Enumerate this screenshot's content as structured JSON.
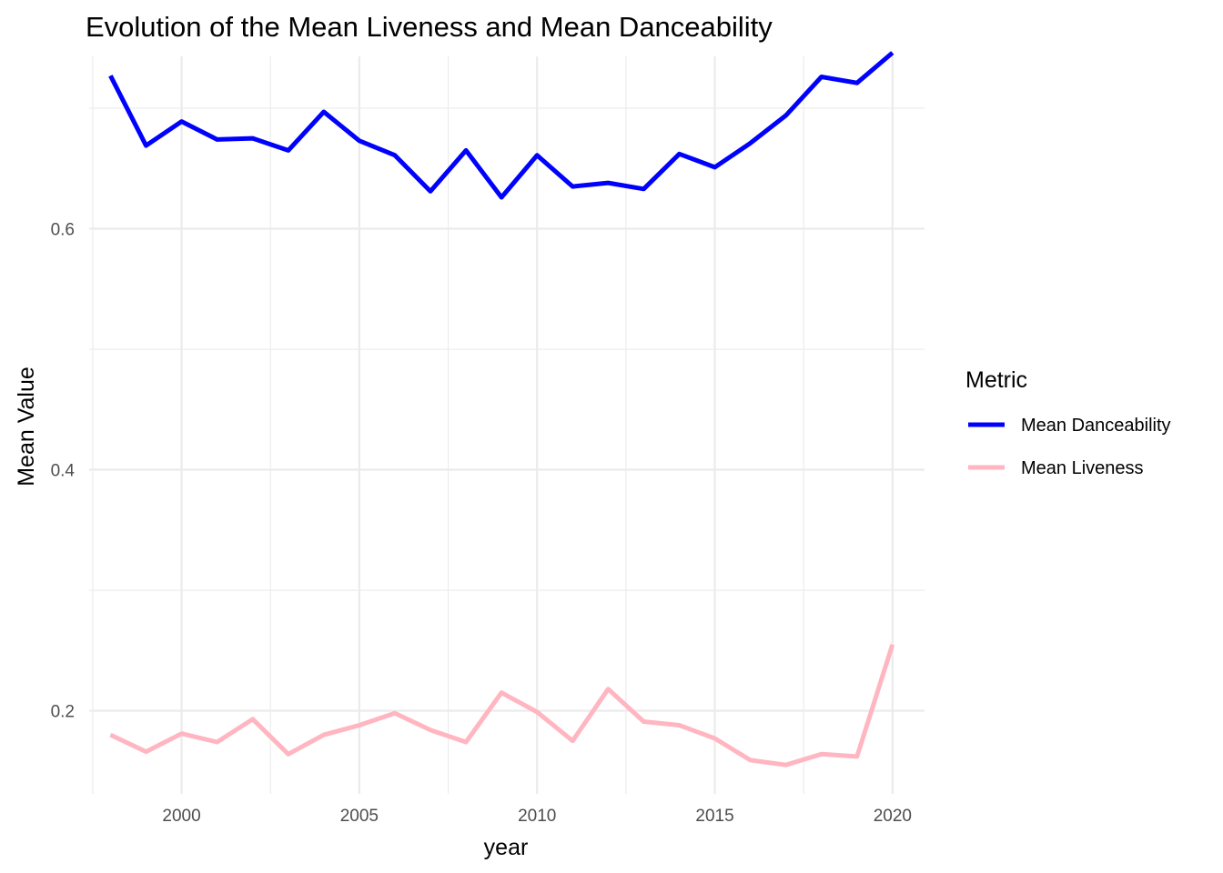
{
  "chart_data": {
    "type": "line",
    "title": "Evolution of the Mean Liveness and Mean Danceability",
    "xlabel": "year",
    "ylabel": "Mean Value",
    "x": [
      1998,
      1999,
      2000,
      2001,
      2002,
      2003,
      2004,
      2005,
      2006,
      2007,
      2008,
      2009,
      2010,
      2011,
      2012,
      2013,
      2014,
      2015,
      2016,
      2017,
      2018,
      2019,
      2020
    ],
    "xlim": [
      1997.4,
      2020.9
    ],
    "ylim": [
      0.131,
      0.743
    ],
    "x_ticks": [
      2000,
      2005,
      2010,
      2015,
      2020
    ],
    "y_ticks": [
      0.2,
      0.4,
      0.6
    ],
    "grid": true,
    "legend": {
      "title": "Metric",
      "position": "right"
    },
    "series": [
      {
        "name": "Mean Danceability",
        "color": "#0000ff",
        "values": [
          0.727,
          0.669,
          0.689,
          0.674,
          0.675,
          0.665,
          0.697,
          0.673,
          0.661,
          0.631,
          0.665,
          0.626,
          0.661,
          0.635,
          0.638,
          0.633,
          0.662,
          0.651,
          0.671,
          0.694,
          0.726,
          0.721,
          0.746
        ]
      },
      {
        "name": "Mean Liveness",
        "color": "#ffb6c1",
        "values": [
          0.18,
          0.166,
          0.181,
          0.174,
          0.193,
          0.164,
          0.18,
          0.188,
          0.198,
          0.184,
          0.174,
          0.215,
          0.199,
          0.175,
          0.218,
          0.191,
          0.188,
          0.177,
          0.159,
          0.155,
          0.164,
          0.162,
          0.255
        ]
      }
    ]
  }
}
